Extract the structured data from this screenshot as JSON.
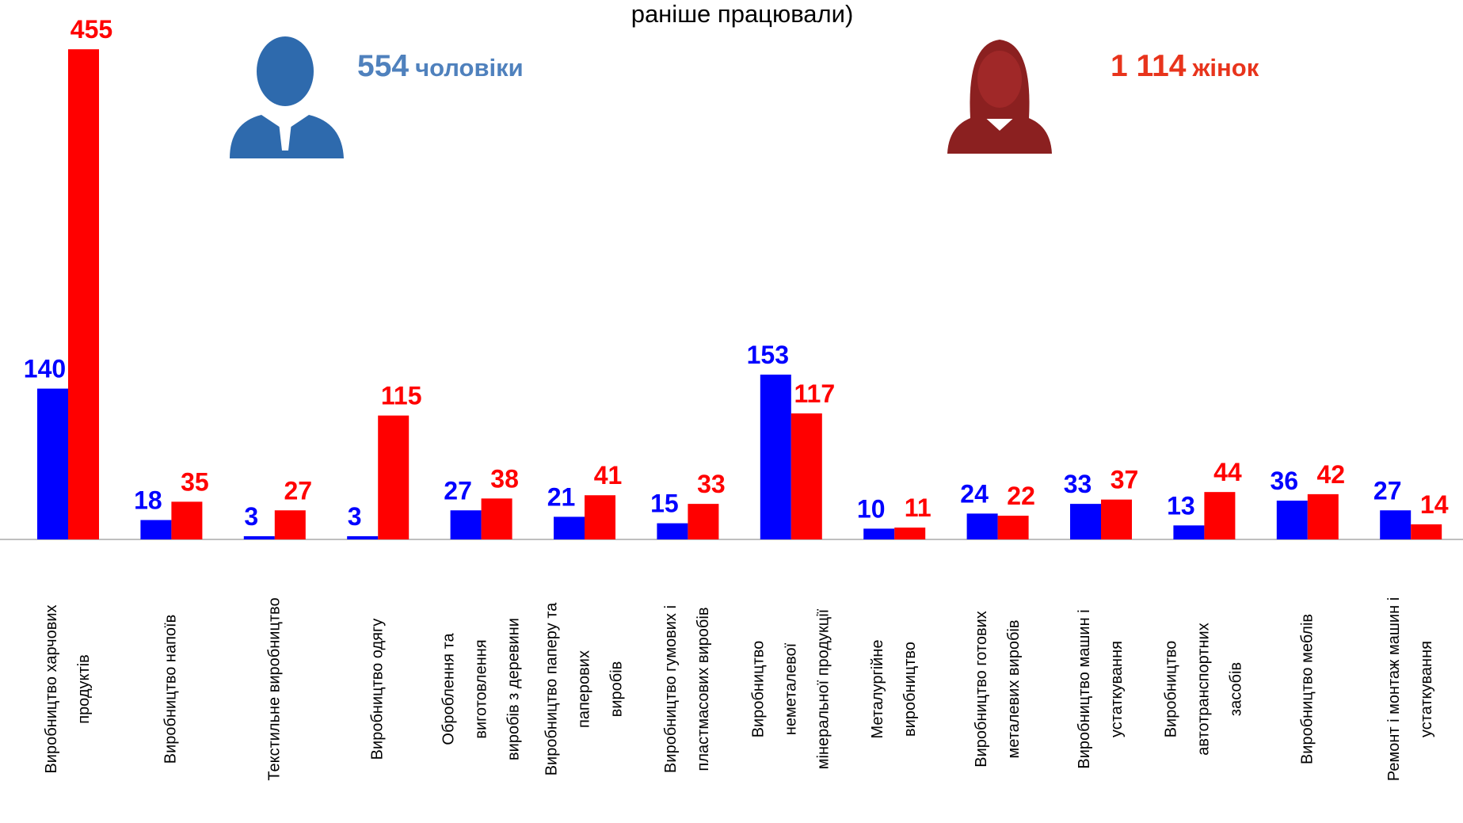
{
  "chart_data": {
    "type": "bar",
    "title": "раніше працювали)",
    "annotations": [
      {
        "number": "554",
        "text": "чоловіки",
        "color": "#4f81bd"
      },
      {
        "number": "1 114",
        "text": "жінок",
        "color": "#e8341c"
      }
    ],
    "categories": [
      "Виробництво харчових\nпродуктів",
      "Виробництво напоїв",
      "Текстильне виробництво",
      "Виробництво одягу",
      "Оброблення та\nвиготовлення\nвиробів з деревини",
      "Виробництво паперу та\nпаперових\nвиробів",
      "Виробництво гумових і\nпластмасових виробів",
      "Виробництво\nнеметалевої\nмінеральної продукції",
      "Металургійне\nвиробництво",
      "Виробництво готових\nметалевих виробів",
      "Виробництво машин і\nустаткування",
      "Виробництво\nавтотранспортних\nзасобів",
      "Виробництво меблів",
      "Ремонт і монтаж машин і\nустаткування"
    ],
    "series": [
      {
        "color": "#0000ff",
        "values": [
          140,
          18,
          3,
          3,
          27,
          21,
          15,
          153,
          10,
          24,
          33,
          13,
          36,
          27
        ]
      },
      {
        "color": "#ff0000",
        "values": [
          455,
          35,
          27,
          115,
          38,
          41,
          33,
          117,
          11,
          22,
          37,
          44,
          42,
          14
        ]
      }
    ],
    "ylim": [
      0,
      460
    ]
  }
}
